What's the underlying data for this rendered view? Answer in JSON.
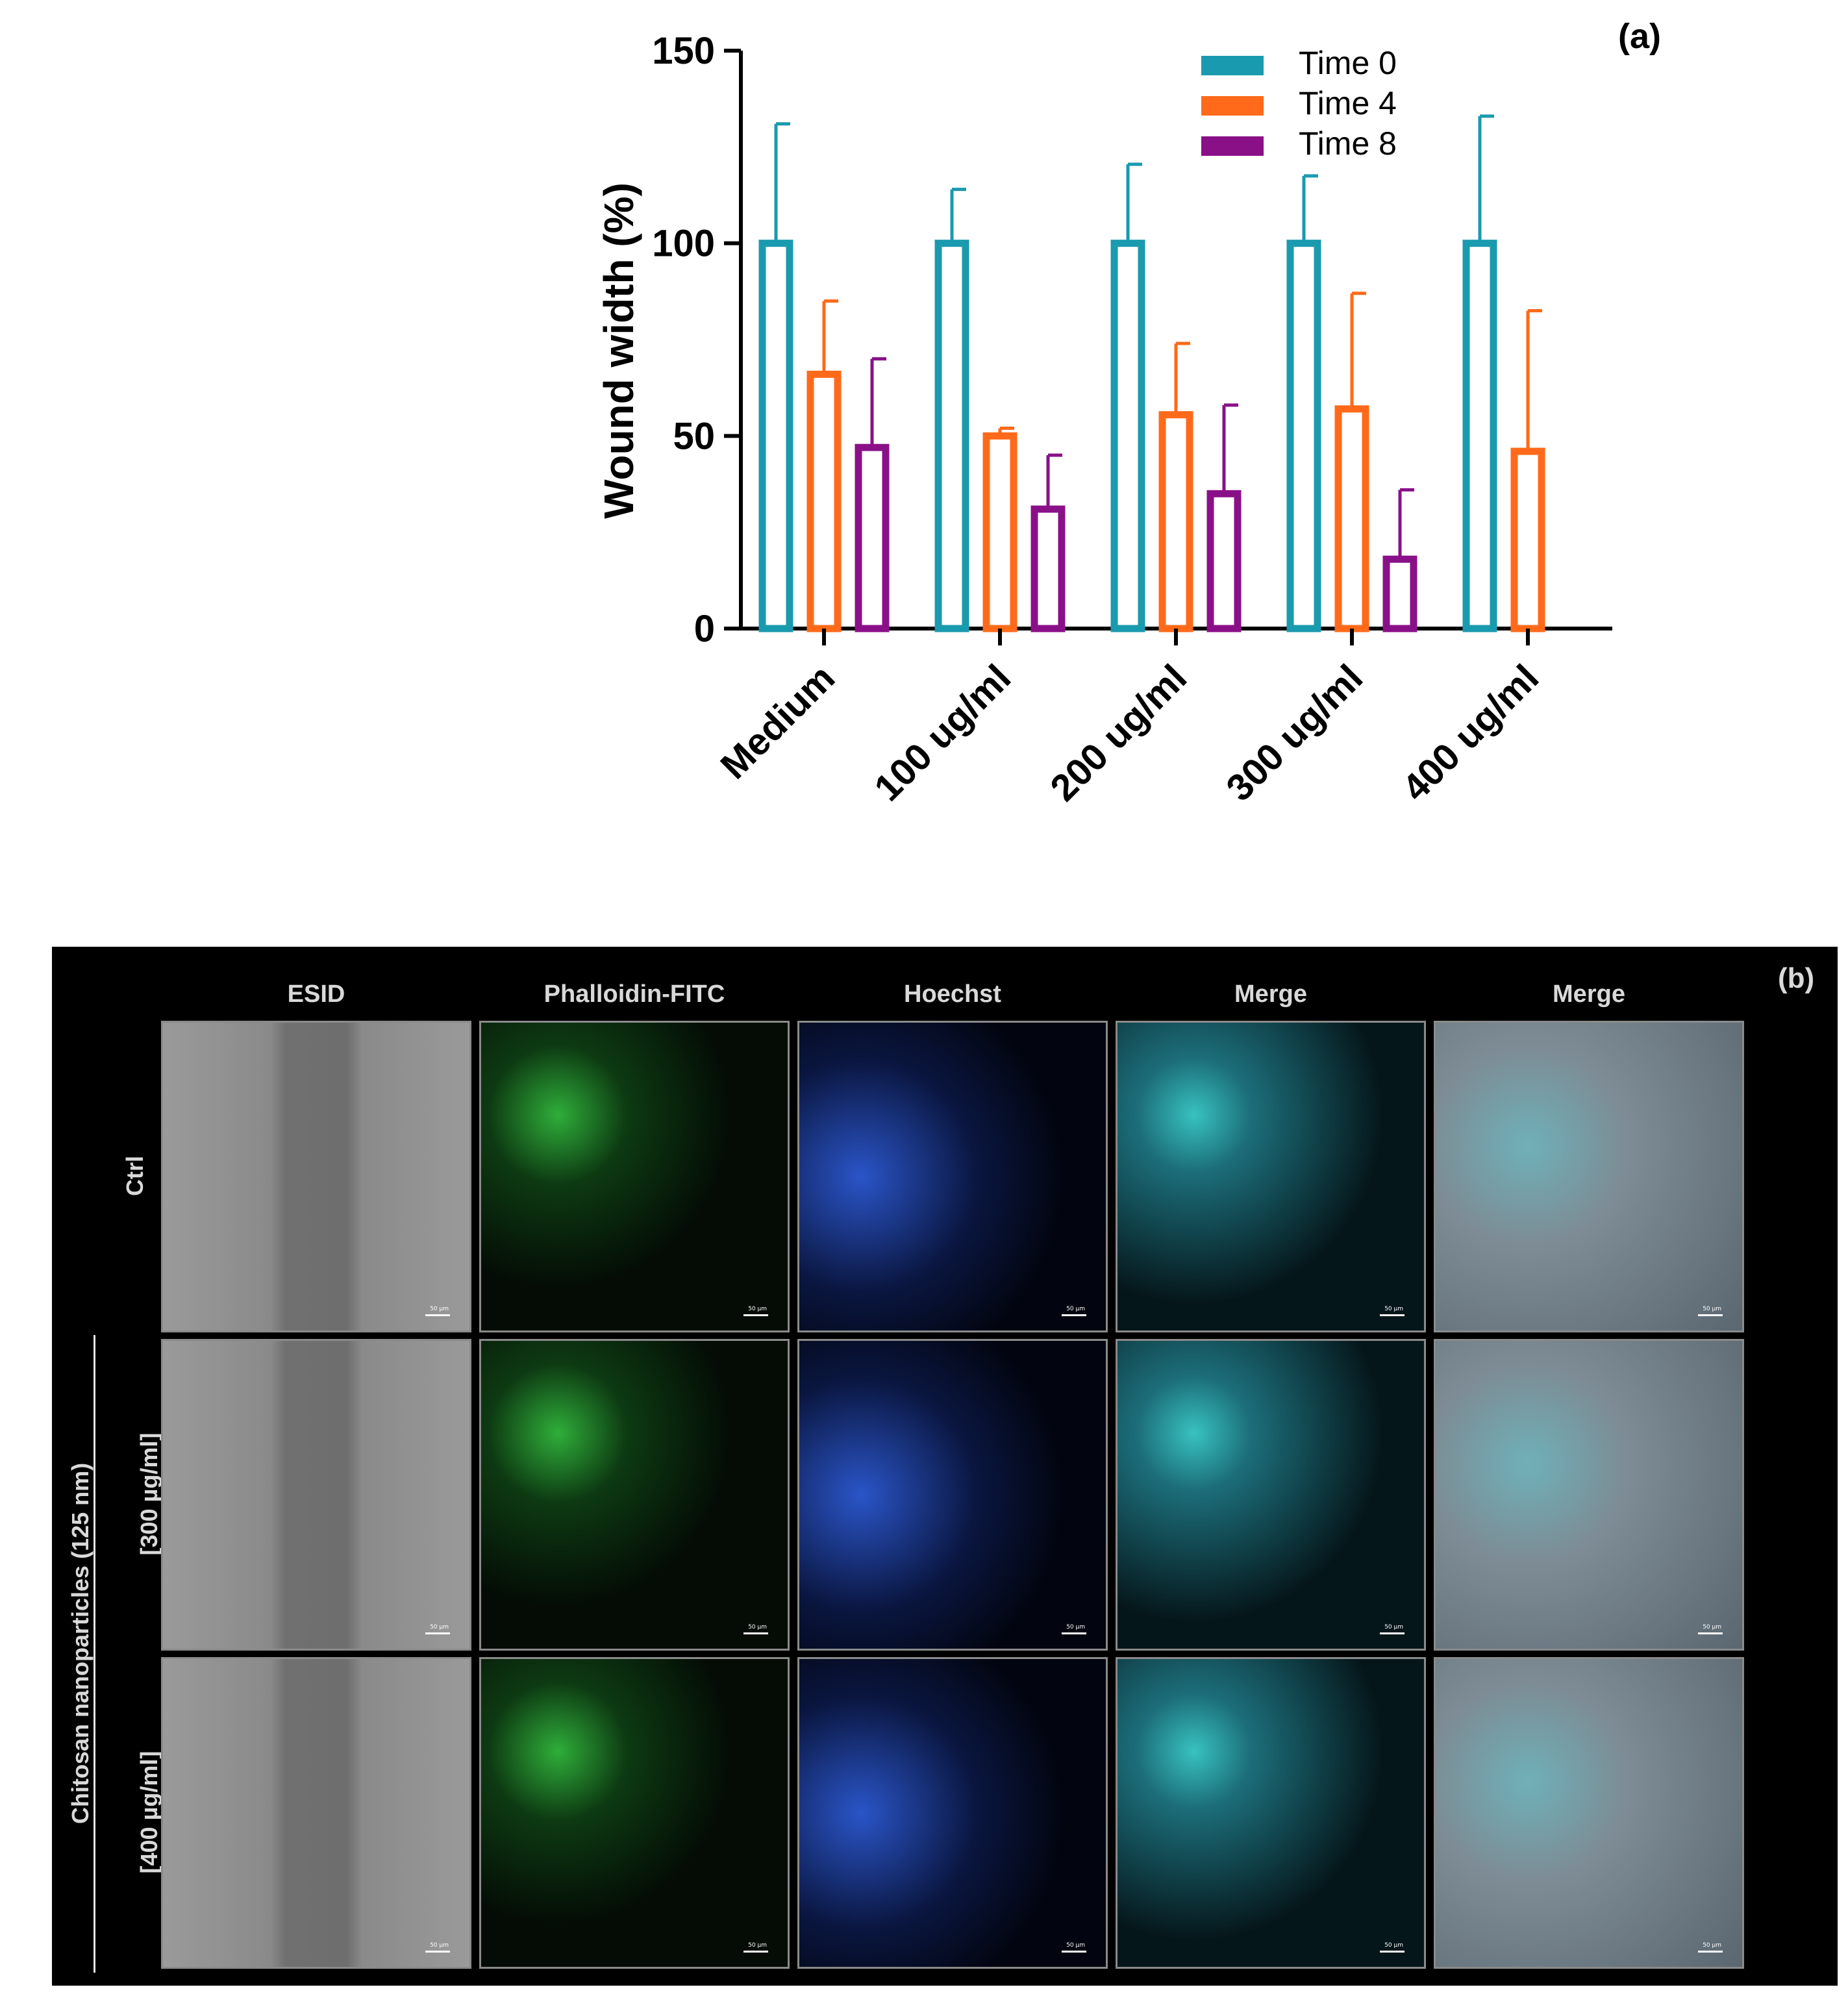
{
  "chart_data": {
    "type": "bar",
    "panel_label": "(a)",
    "ylabel": "Wound width (%)",
    "ylim": [
      0,
      150
    ],
    "yticks": [
      0,
      50,
      100,
      150
    ],
    "categories": [
      "Medium",
      "100 ug/ml",
      "200 ug/ml",
      "300 ug/ml",
      "400 ug/ml"
    ],
    "series": [
      {
        "name": "Time 0",
        "color": "#1a9aae",
        "values": [
          100,
          100,
          100,
          100,
          100
        ],
        "errors": [
          31,
          14,
          20.5,
          17.5,
          33
        ]
      },
      {
        "name": "Time 4",
        "color": "#ff6a1a",
        "values": [
          66,
          50,
          55.5,
          57,
          46
        ],
        "errors": [
          19,
          2,
          18.5,
          30,
          36.5
        ]
      },
      {
        "name": "Time 8",
        "color": "#8a1088",
        "values": [
          47,
          31,
          35,
          18,
          null
        ],
        "errors": [
          23,
          14,
          23,
          18,
          null
        ]
      }
    ],
    "legend_position": "top-right",
    "grid": false
  },
  "panel_b": {
    "label": "(b)",
    "columns": [
      "ESID",
      "Phalloidin-FITC",
      "Hoechst",
      "Merge",
      "Merge"
    ],
    "rows": [
      "Ctrl",
      "[300 µg/ml]",
      "[400 µg/ml]"
    ],
    "group_label": "Chitosan nanoparticles (125 nm)",
    "scale_label": "50 µm",
    "image_colors": {
      "esid": "#8c8c8c",
      "phalloidin": "#1f8a2a",
      "hoechst": "#2a55c8",
      "merge": "#1c6e7a",
      "merge_esid": "#7d8c95"
    }
  }
}
